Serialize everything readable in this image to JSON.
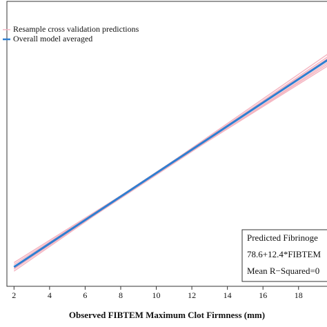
{
  "chart_data": {
    "type": "line",
    "x_label": "Observed FIBTEM Maximum Clot Firmness (mm)",
    "xlim": [
      1.6,
      19.6
    ],
    "xticks": [
      2,
      4,
      6,
      8,
      10,
      12,
      14,
      16,
      18
    ],
    "ylim": [
      83,
      384
    ],
    "series": [
      {
        "name": "Resample cross validation predictions",
        "color": "#f4b6c2",
        "x": [
          2,
          20
        ],
        "values": [
          101,
          330
        ]
      },
      {
        "color": "#f4b6c2",
        "x": [
          2,
          20
        ],
        "values": [
          106,
          322
        ]
      },
      {
        "color": "#f4b6c2",
        "x": [
          2,
          20
        ],
        "values": [
          99,
          333
        ]
      },
      {
        "color": "#f4b6c2",
        "x": [
          2,
          20
        ],
        "values": [
          104,
          328
        ]
      },
      {
        "color": "#f4b6c2",
        "x": [
          2,
          20
        ],
        "values": [
          108,
          320
        ]
      },
      {
        "color": "#f4b6c2",
        "x": [
          2,
          20
        ],
        "values": [
          102,
          324
        ]
      },
      {
        "name": "Overall model averaged",
        "color": "#2f7fd1",
        "x": [
          2,
          20
        ],
        "values": [
          103.4,
          326.6
        ]
      }
    ],
    "annotation": [
      "Predicted Fibrinoge",
      "78.6+12.4*FIBTEM",
      "Mean R−Squared=0"
    ]
  }
}
